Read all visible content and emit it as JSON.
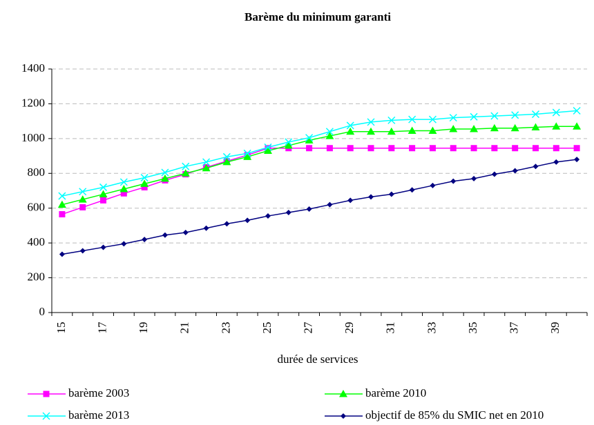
{
  "chart_data": {
    "type": "line",
    "title": "Barème du minimum garanti",
    "x_label": "durée de services",
    "categories": [
      15,
      null,
      17,
      null,
      19,
      null,
      21,
      null,
      23,
      null,
      25,
      null,
      27,
      null,
      29,
      null,
      31,
      null,
      33,
      null,
      35,
      null,
      37,
      null,
      39,
      null
    ],
    "ylim": [
      0,
      1400
    ],
    "yticks": [
      0,
      200,
      400,
      600,
      800,
      1000,
      1200,
      1400
    ],
    "grid": true,
    "legend": "bottom",
    "series": [
      {
        "name": "barème 2003",
        "color": "#ff00ff",
        "marker": "square",
        "values": [
          565,
          605,
          645,
          685,
          720,
          760,
          795,
          835,
          870,
          905,
          945,
          945,
          945,
          945,
          945,
          945,
          945,
          945,
          945,
          945,
          945,
          945,
          945,
          945,
          945,
          945
        ]
      },
      {
        "name": "barème 2010",
        "color": "#00ff00",
        "marker": "triangle",
        "values": [
          620,
          650,
          680,
          710,
          740,
          770,
          800,
          830,
          865,
          895,
          930,
          960,
          990,
          1015,
          1040,
          1040,
          1040,
          1045,
          1045,
          1055,
          1055,
          1060,
          1060,
          1065,
          1070,
          1070
        ]
      },
      {
        "name": "barème 2013",
        "color": "#00ffff",
        "marker": "x",
        "values": [
          670,
          695,
          720,
          750,
          775,
          805,
          840,
          865,
          895,
          915,
          950,
          980,
          1005,
          1040,
          1075,
          1095,
          1105,
          1110,
          1110,
          1120,
          1125,
          1130,
          1135,
          1140,
          1150,
          1160
        ]
      },
      {
        "name": "objectif de 85% du SMIC net en 2010",
        "color": "#000080",
        "marker": "diamond",
        "values": [
          335,
          355,
          375,
          395,
          420,
          445,
          460,
          485,
          510,
          530,
          555,
          575,
          595,
          620,
          645,
          665,
          680,
          705,
          730,
          755,
          770,
          795,
          815,
          840,
          865,
          880
        ]
      }
    ]
  }
}
